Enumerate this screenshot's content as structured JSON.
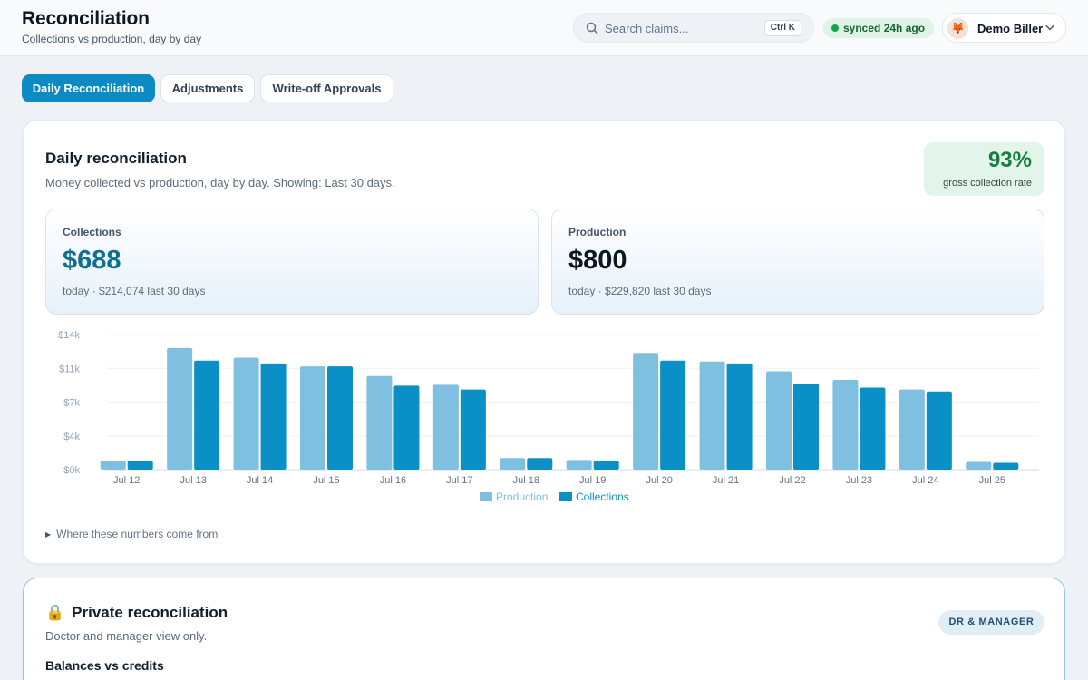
{
  "header": {
    "title": "Reconciliation",
    "subtitle": "Collections vs production, day by day",
    "search_placeholder": "Search claims...",
    "search_shortcut": "Ctrl K",
    "sync_status": "synced 24h ago",
    "user_name": "Demo Biller",
    "avatar_glyph": "🦊"
  },
  "tabs": [
    {
      "label": "Daily Reconciliation",
      "active": true
    },
    {
      "label": "Adjustments",
      "active": false
    },
    {
      "label": "Write-off Approvals",
      "active": false
    }
  ],
  "daily": {
    "title": "Daily reconciliation",
    "subtitle": "Money collected vs production, day by day. Showing: Last 30 days.",
    "collection_rate": "93%",
    "collection_rate_label": "gross collection rate",
    "collections": {
      "label": "Collections",
      "value": "$688",
      "foot": "today · $214,074 last 30 days"
    },
    "production": {
      "label": "Production",
      "value": "$800",
      "foot": "today · $229,820 last 30 days"
    },
    "details_toggle": "Where these numbers come from"
  },
  "colors": {
    "production": "#7fbfdf",
    "collections": "#0a8fc6",
    "collections_value": "#0e6f94",
    "accent": "#0b8ac4"
  },
  "chart_data": {
    "type": "bar",
    "categories": [
      "Jul 12",
      "Jul 13",
      "Jul 14",
      "Jul 15",
      "Jul 16",
      "Jul 17",
      "Jul 18",
      "Jul 19",
      "Jul 20",
      "Jul 21",
      "Jul 22",
      "Jul 23",
      "Jul 24",
      "Jul 25"
    ],
    "series": [
      {
        "name": "Production",
        "values": [
          900,
          12600,
          11600,
          10700,
          9700,
          8800,
          1200,
          1000,
          12100,
          11200,
          10200,
          9300,
          8300,
          800
        ]
      },
      {
        "name": "Collections",
        "values": [
          900,
          11300,
          11000,
          10700,
          8700,
          8300,
          1200,
          900,
          11300,
          11000,
          8900,
          8500,
          8100,
          700
        ]
      }
    ],
    "y_ticks": [
      "$0k",
      "$4k",
      "$7k",
      "$11k",
      "$14k"
    ],
    "y_tick_values": [
      0,
      3500,
      7000,
      10500,
      14000
    ],
    "ylim": [
      0,
      14000
    ],
    "legend": [
      "Production",
      "Collections"
    ],
    "legend_position": "bottom-center",
    "grid": true
  },
  "private": {
    "lock_glyph": "🔒",
    "title": "Private reconciliation",
    "subtitle": "Doctor and manager view only.",
    "role_badge": "DR & MANAGER",
    "section_heading": "Balances vs credits"
  }
}
